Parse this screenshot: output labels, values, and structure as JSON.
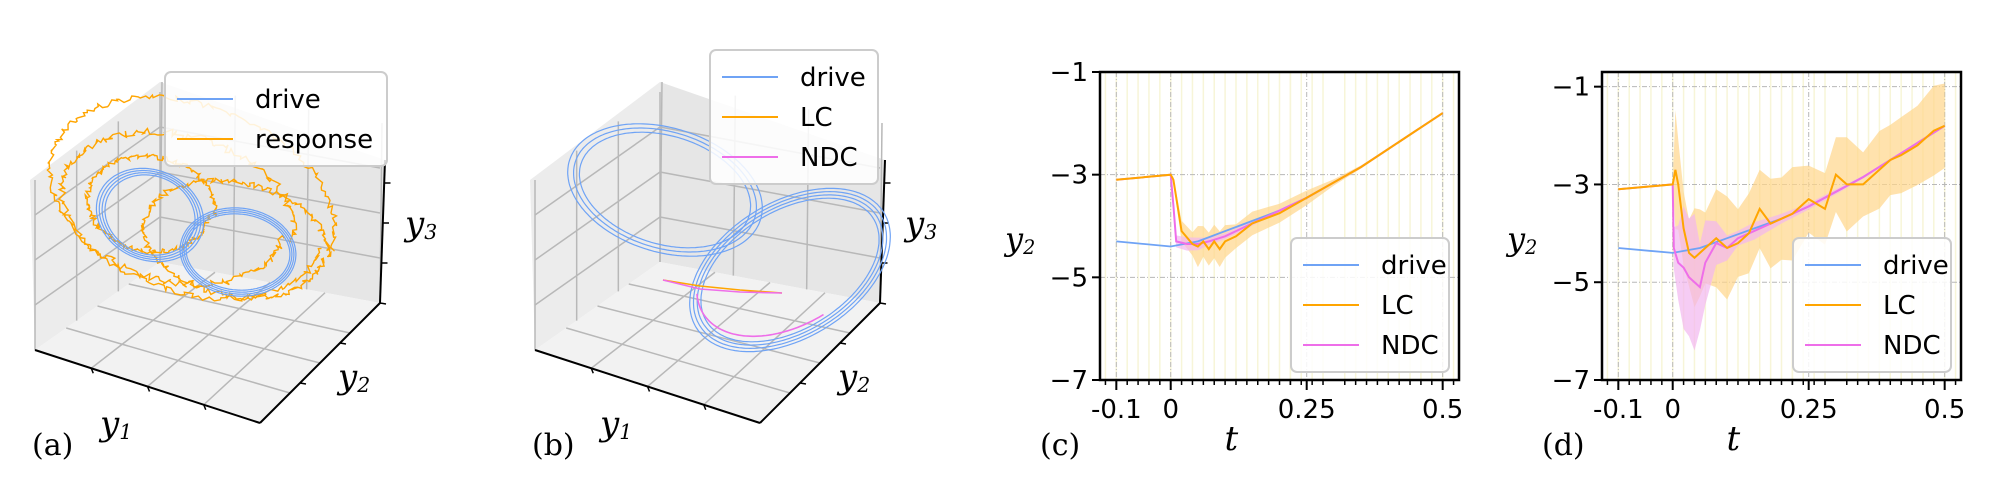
{
  "colors": {
    "drive": "#6fa3f5",
    "lc": "#ffa500",
    "ndc": "#ee6ee9",
    "lc_band": "#ffd68a",
    "ndc_band": "#f2b6ef",
    "stripe": "#f7f5d8",
    "grid": "#b8b8b8",
    "pane": "#f2f2f2"
  },
  "chart_data": [
    {
      "id": "a",
      "type": "line3d",
      "panel_label": "(a)",
      "xlabel": "y",
      "xlabel_sub": "1",
      "ylabel": "y",
      "ylabel_sub": "2",
      "zlabel": "y",
      "zlabel_sub": "3",
      "legend": {
        "position": "top-right",
        "entries": [
          {
            "name": "drive",
            "color_key": "drive"
          },
          {
            "name": "response",
            "color_key": "lc"
          }
        ]
      },
      "series": [
        {
          "name": "drive",
          "description": "Lorenz-like double-lobe attractor, two wings"
        },
        {
          "name": "response",
          "description": "noisy trajectory spiraling around both wings with larger radius"
        }
      ]
    },
    {
      "id": "b",
      "type": "line3d",
      "panel_label": "(b)",
      "xlabel": "y",
      "xlabel_sub": "1",
      "ylabel": "y",
      "ylabel_sub": "2",
      "zlabel": "y",
      "zlabel_sub": "3",
      "legend": {
        "position": "top-right",
        "entries": [
          {
            "name": "drive",
            "color_key": "drive"
          },
          {
            "name": "LC",
            "color_key": "lc"
          },
          {
            "name": "NDC",
            "color_key": "ndc"
          }
        ]
      },
      "series": [
        {
          "name": "drive",
          "description": "two-wing attractor loops"
        },
        {
          "name": "LC",
          "description": "short straight segment converging onto the right wing"
        },
        {
          "name": "NDC",
          "description": "short segment converging onto right wing then following it"
        }
      ]
    },
    {
      "id": "c",
      "type": "line",
      "panel_label": "(c)",
      "xlabel": "t",
      "ylabel": "y",
      "ylabel_sub": "2",
      "xlim": [
        -0.13,
        0.53
      ],
      "ylim": [
        -7,
        -1
      ],
      "xticks": [
        -0.1,
        0,
        0.25,
        0.5
      ],
      "xtick_labels": [
        "-0.1",
        "0",
        "0.25",
        "0.5"
      ],
      "yticks": [
        -7,
        -5,
        -3,
        -1
      ],
      "ytick_labels": [
        "−7",
        "−5",
        "−3",
        "−1"
      ],
      "minor_xtick_step": 0.02,
      "grid": true,
      "legend": {
        "position": "lower-right",
        "entries": [
          {
            "name": "drive",
            "color_key": "drive"
          },
          {
            "name": "LC",
            "color_key": "lc"
          },
          {
            "name": "NDC",
            "color_key": "ndc"
          }
        ]
      },
      "series": [
        {
          "name": "drive",
          "color_key": "drive",
          "x": [
            -0.1,
            0,
            0.05,
            0.1,
            0.15,
            0.2,
            0.25,
            0.3,
            0.35,
            0.4,
            0.45,
            0.5
          ],
          "y": [
            -4.3,
            -4.4,
            -4.3,
            -4.1,
            -3.9,
            -3.7,
            -3.45,
            -3.15,
            -2.85,
            -2.5,
            -2.15,
            -1.8
          ]
        },
        {
          "name": "LC",
          "color_key": "lc",
          "x": [
            -0.1,
            0,
            0.005,
            0.02,
            0.04,
            0.05,
            0.06,
            0.07,
            0.08,
            0.09,
            0.1,
            0.12,
            0.15,
            0.2,
            0.25,
            0.3,
            0.35,
            0.4,
            0.45,
            0.5
          ],
          "y": [
            -3.1,
            -3.0,
            -3.1,
            -4.1,
            -4.35,
            -4.4,
            -4.3,
            -4.45,
            -4.3,
            -4.45,
            -4.3,
            -4.2,
            -3.95,
            -3.75,
            -3.45,
            -3.15,
            -2.85,
            -2.5,
            -2.15,
            -1.8
          ],
          "band_half_width": [
            0,
            0,
            0.05,
            0.2,
            0.3,
            0.35,
            0.35,
            0.4,
            0.4,
            0.35,
            0.3,
            0.25,
            0.2,
            0.15,
            0.12,
            0.06,
            0.03,
            0.02,
            0.02,
            0.02
          ]
        },
        {
          "name": "NDC",
          "color_key": "ndc",
          "x": [
            -0.1,
            0,
            0.005,
            0.01,
            0.03,
            0.05,
            0.07,
            0.1,
            0.12,
            0.15,
            0.2,
            0.25,
            0.3,
            0.35,
            0.4,
            0.45,
            0.5
          ],
          "y": [
            -3.1,
            -3.0,
            -3.6,
            -4.3,
            -4.35,
            -4.35,
            -4.3,
            -4.2,
            -4.1,
            -3.95,
            -3.7,
            -3.45,
            -3.15,
            -2.85,
            -2.5,
            -2.15,
            -1.8
          ],
          "band_half_width": [
            0,
            0,
            0.05,
            0.12,
            0.12,
            0.1,
            0.08,
            0.06,
            0.05,
            0.04,
            0.03,
            0.02,
            0.02,
            0.02,
            0.02,
            0.02,
            0.02
          ]
        }
      ]
    },
    {
      "id": "d",
      "type": "line",
      "panel_label": "(d)",
      "xlabel": "t",
      "ylabel": "y",
      "ylabel_sub": "2",
      "xlim": [
        -0.13,
        0.53
      ],
      "ylim": [
        -7,
        -0.7
      ],
      "xticks": [
        -0.1,
        0,
        0.25,
        0.5
      ],
      "xtick_labels": [
        "-0.1",
        "0",
        "0.25",
        "0.5"
      ],
      "yticks": [
        -7,
        -5,
        -3,
        -1
      ],
      "ytick_labels": [
        "−7",
        "−5",
        "−3",
        "−1"
      ],
      "minor_xtick_step": 0.02,
      "grid": true,
      "legend": {
        "position": "lower-right",
        "entries": [
          {
            "name": "drive",
            "color_key": "drive"
          },
          {
            "name": "LC",
            "color_key": "lc"
          },
          {
            "name": "NDC",
            "color_key": "ndc"
          }
        ]
      },
      "series": [
        {
          "name": "drive",
          "color_key": "drive",
          "x": [
            -0.1,
            0,
            0.05,
            0.1,
            0.15,
            0.2,
            0.25,
            0.3,
            0.35,
            0.4,
            0.45,
            0.5
          ],
          "y": [
            -4.3,
            -4.4,
            -4.3,
            -4.1,
            -3.9,
            -3.7,
            -3.45,
            -3.15,
            -2.85,
            -2.5,
            -2.15,
            -1.8
          ]
        },
        {
          "name": "LC",
          "color_key": "lc",
          "x": [
            -0.1,
            0,
            0.005,
            0.01,
            0.02,
            0.03,
            0.04,
            0.05,
            0.06,
            0.08,
            0.1,
            0.12,
            0.14,
            0.16,
            0.18,
            0.2,
            0.22,
            0.25,
            0.28,
            0.3,
            0.32,
            0.35,
            0.38,
            0.4,
            0.42,
            0.45,
            0.48,
            0.5
          ],
          "y": [
            -3.1,
            -3.0,
            -2.7,
            -3.0,
            -3.9,
            -4.4,
            -4.5,
            -4.4,
            -4.3,
            -4.1,
            -4.3,
            -4.2,
            -4.0,
            -3.5,
            -3.8,
            -3.7,
            -3.6,
            -3.3,
            -3.5,
            -2.8,
            -3.0,
            -3.0,
            -2.7,
            -2.5,
            -2.4,
            -2.2,
            -1.9,
            -1.8
          ],
          "band_half_width": [
            0,
            0,
            1.2,
            1.1,
            1.0,
            0.9,
            0.9,
            0.9,
            0.9,
            0.9,
            0.9,
            0.8,
            0.8,
            0.8,
            0.8,
            0.8,
            0.8,
            0.8,
            0.8,
            0.8,
            0.8,
            0.8,
            0.8,
            0.8,
            0.8,
            0.8,
            0.8,
            0.8
          ]
        },
        {
          "name": "NDC",
          "color_key": "ndc",
          "x": [
            -0.1,
            0,
            0.002,
            0.01,
            0.02,
            0.03,
            0.04,
            0.05,
            0.06,
            0.08,
            0.1,
            0.12,
            0.15,
            0.2,
            0.25,
            0.3,
            0.35,
            0.4,
            0.45,
            0.5
          ],
          "y": [
            -3.1,
            -3.0,
            -4.3,
            -4.6,
            -4.7,
            -4.9,
            -5.0,
            -5.1,
            -4.6,
            -4.2,
            -4.3,
            -4.1,
            -3.95,
            -3.7,
            -3.45,
            -3.15,
            -2.85,
            -2.5,
            -2.15,
            -1.8
          ],
          "band_half_width": [
            0,
            0,
            0.5,
            0.9,
            1.1,
            1.2,
            1.3,
            1.1,
            0.7,
            0.4,
            0.3,
            0.2,
            0.15,
            0.1,
            0.08,
            0.05,
            0.03,
            0.02,
            0.02,
            0.02
          ]
        }
      ]
    }
  ]
}
